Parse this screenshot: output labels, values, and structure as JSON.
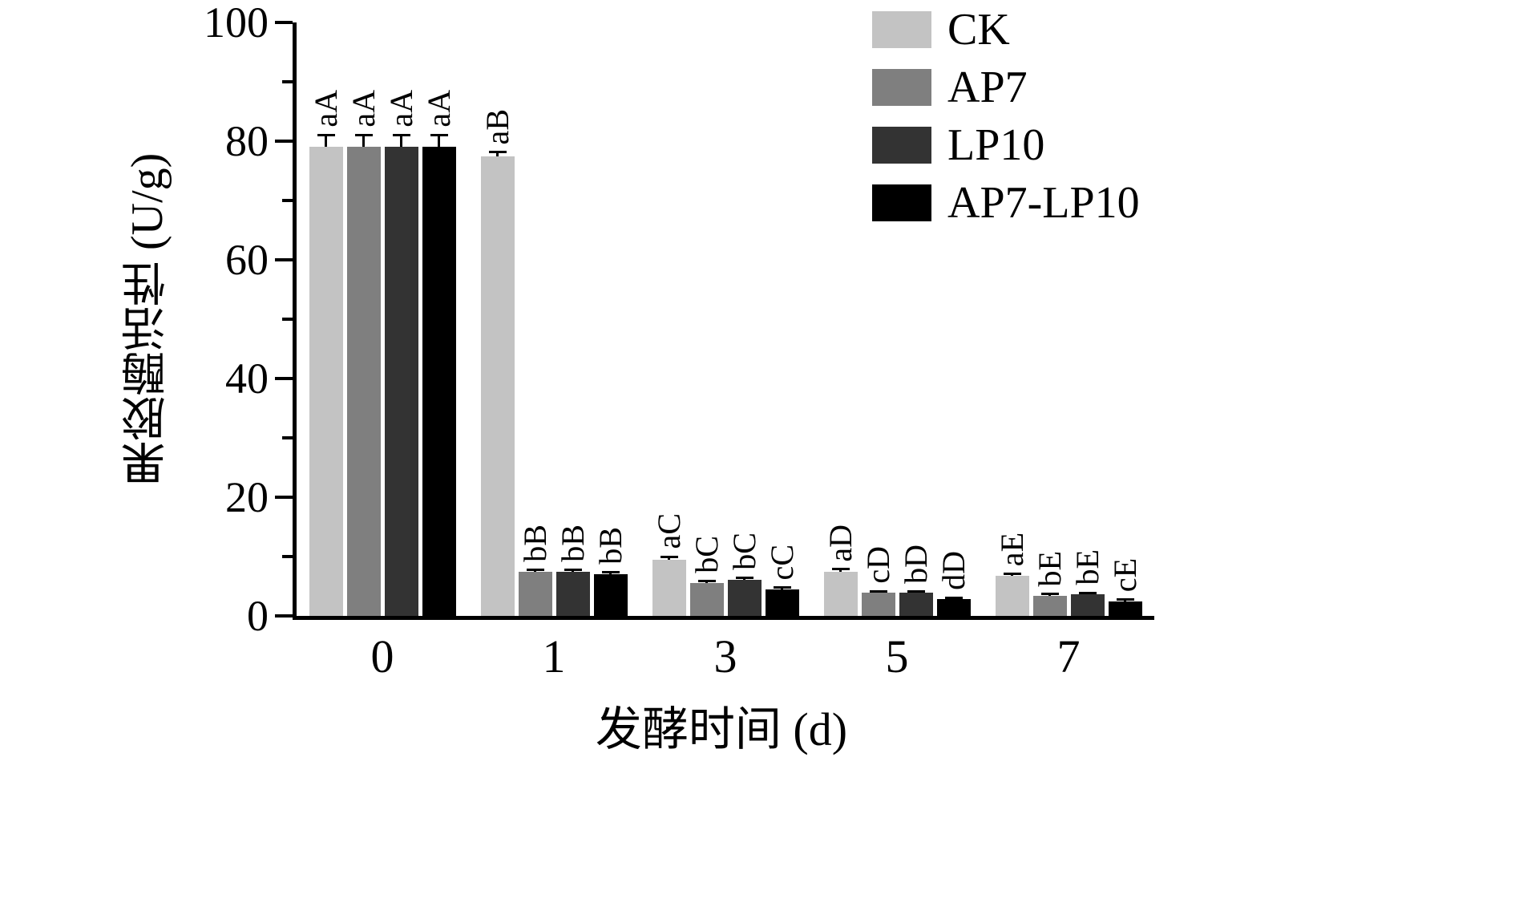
{
  "figure": {
    "xlabel": "发酵时间 (d)",
    "ylabel": "果胶酶活性 (U/g)"
  },
  "chart_data": {
    "type": "bar",
    "title": "",
    "xlabel": "发酵时间 (d)",
    "ylabel": "果胶酶活性 (U/g)",
    "ylim": [
      0,
      100
    ],
    "yticks": [
      0,
      20,
      40,
      60,
      80,
      100
    ],
    "minor_yticks": [
      10,
      30,
      50,
      70,
      90
    ],
    "categories": [
      "0",
      "1",
      "3",
      "5",
      "7"
    ],
    "grid": false,
    "legend_position": "top-right",
    "series": [
      {
        "name": "CK",
        "color": "#c3c3c3",
        "values": [
          79,
          77.5,
          9.5,
          7.4,
          6.7
        ],
        "errors": [
          2,
          0.6,
          0.4,
          0.4,
          0.3
        ],
        "sig_labels": [
          "aA",
          "aB",
          "aC",
          "aD",
          "aE"
        ]
      },
      {
        "name": "AP7",
        "color": "#7f7f7f",
        "values": [
          79,
          7.4,
          5.5,
          3.9,
          3.4
        ],
        "errors": [
          2,
          0.3,
          0.3,
          0.2,
          0.2
        ],
        "sig_labels": [
          "aA",
          "bB",
          "bC",
          "cD",
          "bE"
        ]
      },
      {
        "name": "LP10",
        "color": "#333333",
        "values": [
          79,
          7.4,
          6.1,
          3.9,
          3.6
        ],
        "errors": [
          2,
          0.3,
          0.3,
          0.2,
          0.2
        ],
        "sig_labels": [
          "aA",
          "bB",
          "bC",
          "bD",
          "bE"
        ]
      },
      {
        "name": "AP7-LP10",
        "color": "#000000",
        "values": [
          79,
          7.0,
          4.5,
          2.8,
          2.5
        ],
        "errors": [
          2,
          0.3,
          0.2,
          0.2,
          0.2
        ],
        "sig_labels": [
          "aA",
          "bB",
          "cC",
          "dD",
          "cE"
        ]
      }
    ]
  }
}
